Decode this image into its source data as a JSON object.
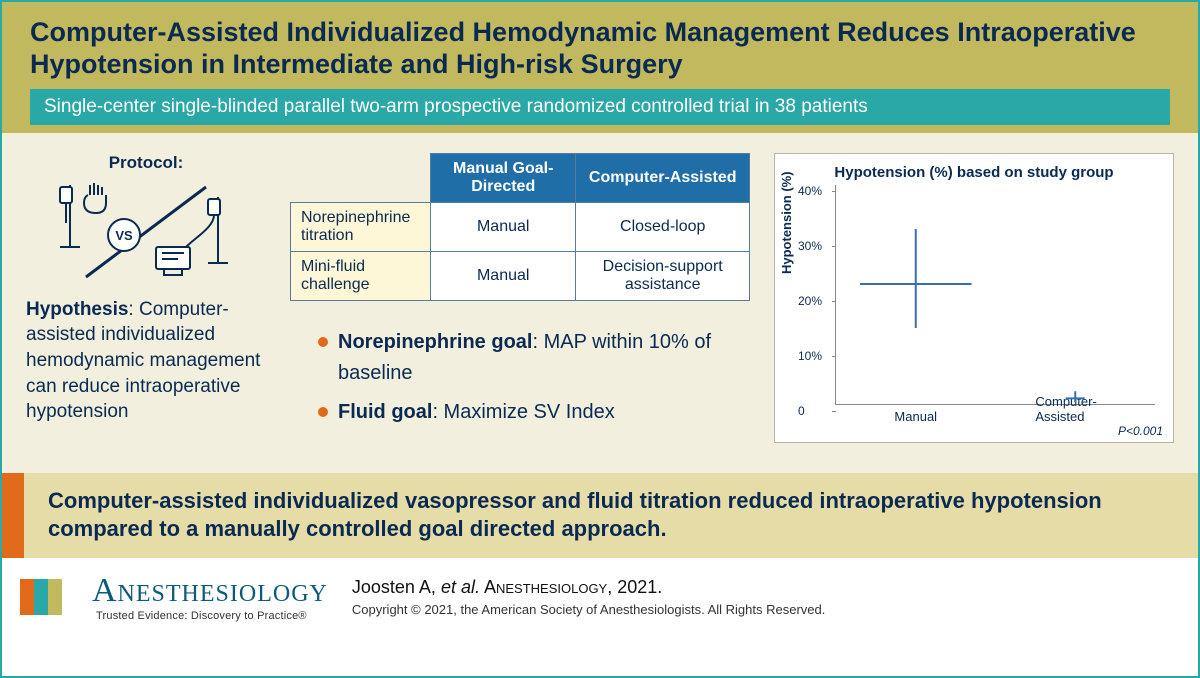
{
  "colors": {
    "teal": "#2aa8a8",
    "olive": "#c2b95e",
    "navy": "#0a2a52",
    "cream_bg": "#f2efdf",
    "orange": "#e06a1a",
    "table_header": "#1f6ea8",
    "table_row_head": "#fdf6d7",
    "conclusion_bg": "#e5dca8",
    "chart_line": "#3a6fae"
  },
  "title": "Computer-Assisted Individualized Hemodynamic Management Reduces Intraoperative Hypotension in Intermediate and High-risk Surgery",
  "subtitle": "Single-center single-blinded parallel two-arm prospective randomized controlled trial in 38 patients",
  "protocol": {
    "label": "Protocol:",
    "vs_label": "VS",
    "hypothesis_label": "Hypothesis",
    "hypothesis_text": ": Computer-assisted individualized hemodynamic management can reduce intraoperative hypotension"
  },
  "table": {
    "col1": "Manual Goal-Directed",
    "col2": "Computer-Assisted",
    "rows": [
      {
        "head": "Norepinephrine titration",
        "c1": "Manual",
        "c2": "Closed-loop"
      },
      {
        "head": "Mini-fluid challenge",
        "c1": "Manual",
        "c2": "Decision-support assistance"
      }
    ]
  },
  "goals": [
    {
      "label": "Norepinephrine goal",
      "text": ": MAP within 10% of baseline"
    },
    {
      "label": "Fluid goal",
      "text": ": Maximize SV Index"
    }
  ],
  "chart": {
    "title": "Hypotension (%) based on study group",
    "ylabel": "Hypotension (%)",
    "ylim": [
      0,
      40
    ],
    "yticks": [
      0,
      "10%",
      "20%",
      "30%",
      "40%"
    ],
    "categories": [
      "Manual",
      "Computer-Assisted"
    ],
    "series": [
      {
        "median": 22,
        "low": 14,
        "high": 32,
        "x_spread": 0.35
      },
      {
        "median": 1.2,
        "low": 0.5,
        "high": 2.5,
        "x_spread": 0.06
      }
    ],
    "line_color": "#3a6fae",
    "line_width": 2,
    "pvalue": "P<0.001"
  },
  "conclusion": "Computer-assisted individualized vasopressor and fluid titration reduced intraoperative hypotension compared to a manually controlled goal directed approach.",
  "footer": {
    "brand": "Anesthesiology",
    "tagline": "Trusted Evidence: Discovery to Practice®",
    "flag_colors": [
      "#e06a1a",
      "#2aa8a8",
      "#c2b95e"
    ],
    "citation_author": "Joosten A, ",
    "citation_etal": "et al.",
    "citation_journal": " Anesthesiology",
    "citation_year": ", 2021.",
    "copyright": "Copyright © 2021, the American Society of Anesthesiologists. All Rights Reserved."
  }
}
